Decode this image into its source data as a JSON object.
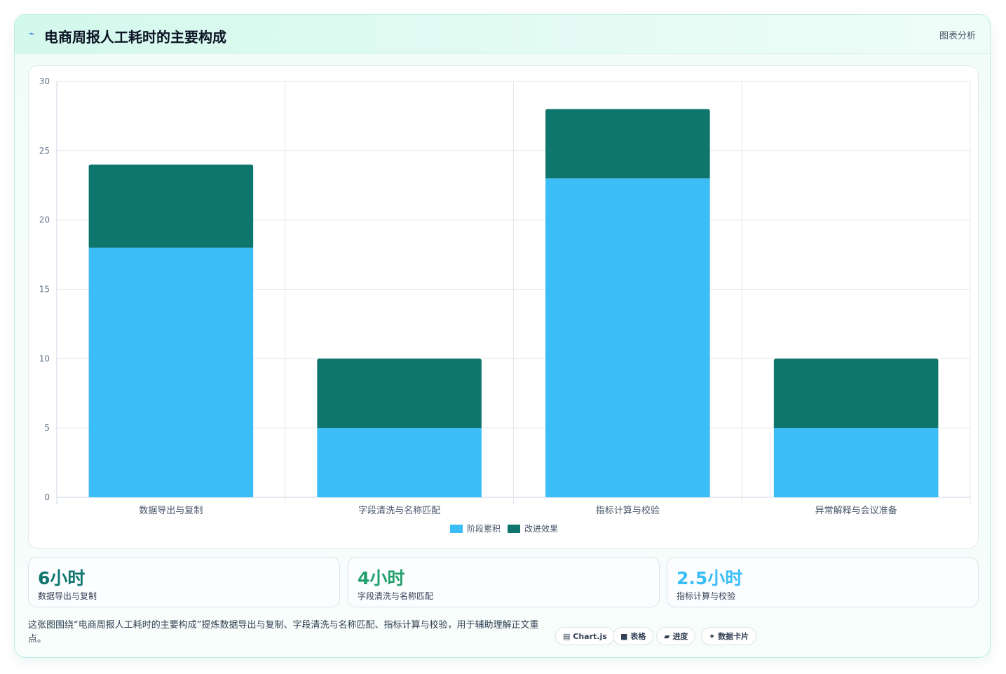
{
  "header": {
    "icon": "chart-spark-icon",
    "title": "电商周报人工耗时的主要构成",
    "tag": "图表分析"
  },
  "chart_data": {
    "type": "bar",
    "stacked": true,
    "categories": [
      "数据导出与复制",
      "字段清洗与名称匹配",
      "指标计算与校验",
      "异常解释与会议准备"
    ],
    "series": [
      {
        "name": "阶段累积",
        "color": "#3bbdf8",
        "values": [
          18,
          5,
          23,
          5
        ]
      },
      {
        "name": "改进效果",
        "color": "#0f766e",
        "values": [
          6,
          5,
          5,
          5
        ]
      }
    ],
    "ylim": [
      0,
      30
    ],
    "yticks": [
      0,
      5,
      10,
      15,
      20,
      25,
      30
    ],
    "grid": true,
    "legend": "bottom"
  },
  "stats": [
    {
      "value": "6小时",
      "label": "数据导出与复制",
      "color": "#0f766e"
    },
    {
      "value": "4小时",
      "label": "字段清洗与名称匹配",
      "color": "#22a06b"
    },
    {
      "value": "2.5小时",
      "label": "指标计算与校验",
      "color": "#3bbdf8"
    }
  ],
  "description": "这张图围绕“电商周报人工耗时的主要构成”提炼数据导出与复制、字段清洗与名称匹配、指标计算与校验，用于辅助理解正文重点。",
  "tags": [
    {
      "icon": "chart-icon",
      "label": "Chart.js"
    },
    {
      "icon": "table-icon",
      "label": "表格"
    },
    {
      "icon": "progress-icon",
      "label": "进度"
    },
    {
      "icon": "sparkle-icon",
      "label": "数据卡片"
    }
  ]
}
